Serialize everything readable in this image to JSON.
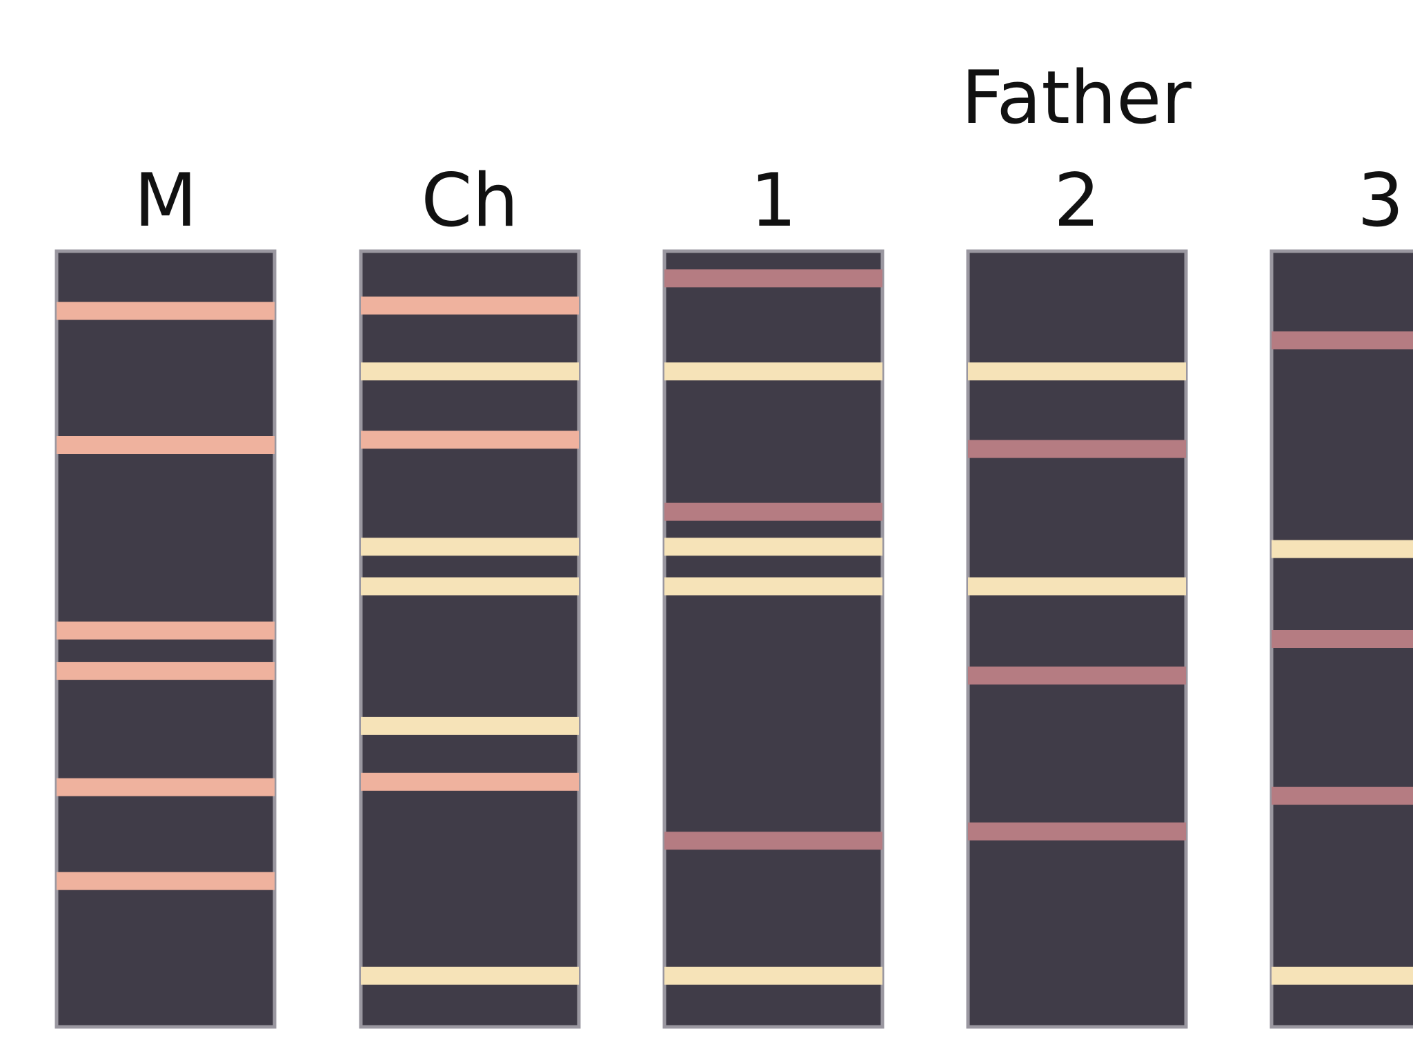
{
  "colors": {
    "background": "#ffffff",
    "lane_fill": "#403c48",
    "lane_border": "#9a97a0",
    "mother_band": "#efb29e",
    "shared_band": "#f6e3b8",
    "father_band": "#b57c82",
    "text": "#111111"
  },
  "group_label": "Father",
  "lanes": [
    {
      "id": "mother",
      "label": "M",
      "bands": [
        {
          "pos": 0.077,
          "kind": "mother_band"
        },
        {
          "pos": 0.25,
          "kind": "mother_band"
        },
        {
          "pos": 0.489,
          "kind": "mother_band"
        },
        {
          "pos": 0.541,
          "kind": "mother_band"
        },
        {
          "pos": 0.691,
          "kind": "mother_band"
        },
        {
          "pos": 0.812,
          "kind": "mother_band"
        }
      ]
    },
    {
      "id": "child",
      "label": "Ch",
      "bands": [
        {
          "pos": 0.07,
          "kind": "mother_band"
        },
        {
          "pos": 0.155,
          "kind": "shared_band"
        },
        {
          "pos": 0.243,
          "kind": "mother_band"
        },
        {
          "pos": 0.381,
          "kind": "shared_band"
        },
        {
          "pos": 0.432,
          "kind": "shared_band"
        },
        {
          "pos": 0.612,
          "kind": "shared_band"
        },
        {
          "pos": 0.684,
          "kind": "mother_band"
        },
        {
          "pos": 0.934,
          "kind": "shared_band"
        }
      ]
    },
    {
      "id": "father-1",
      "label": "1",
      "bands": [
        {
          "pos": 0.035,
          "kind": "father_band"
        },
        {
          "pos": 0.155,
          "kind": "shared_band"
        },
        {
          "pos": 0.336,
          "kind": "father_band"
        },
        {
          "pos": 0.381,
          "kind": "shared_band"
        },
        {
          "pos": 0.432,
          "kind": "shared_band"
        },
        {
          "pos": 0.76,
          "kind": "father_band"
        },
        {
          "pos": 0.934,
          "kind": "shared_band"
        }
      ]
    },
    {
      "id": "father-2",
      "label": "2",
      "bands": [
        {
          "pos": 0.155,
          "kind": "shared_band"
        },
        {
          "pos": 0.255,
          "kind": "father_band"
        },
        {
          "pos": 0.432,
          "kind": "shared_band"
        },
        {
          "pos": 0.547,
          "kind": "father_band"
        },
        {
          "pos": 0.748,
          "kind": "father_band"
        }
      ]
    },
    {
      "id": "father-3",
      "label": "3",
      "bands": [
        {
          "pos": 0.115,
          "kind": "father_band"
        },
        {
          "pos": 0.384,
          "kind": "shared_band"
        },
        {
          "pos": 0.5,
          "kind": "father_band"
        },
        {
          "pos": 0.702,
          "kind": "father_band"
        },
        {
          "pos": 0.934,
          "kind": "shared_band"
        }
      ]
    }
  ]
}
